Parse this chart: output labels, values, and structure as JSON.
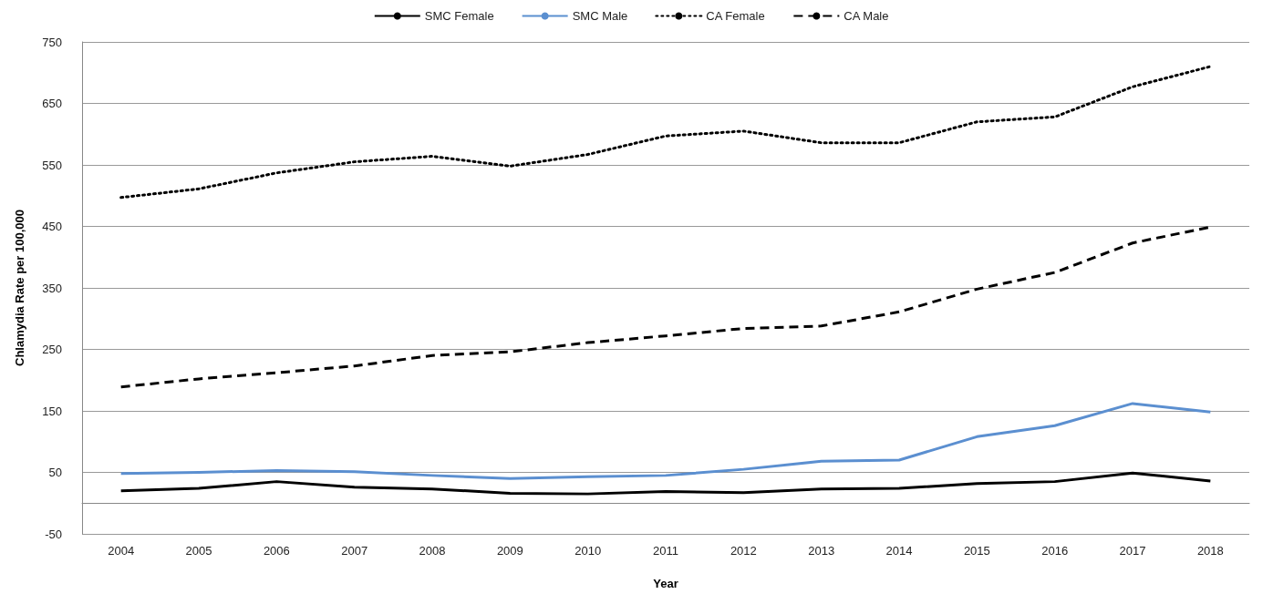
{
  "chart_data": {
    "type": "line",
    "xlabel": "Year",
    "ylabel": "Chlamydia Rate per 100,000",
    "categories": [
      "2004",
      "2005",
      "2006",
      "2007",
      "2008",
      "2009",
      "2010",
      "2011",
      "2012",
      "2013",
      "2014",
      "2015",
      "2016",
      "2017",
      "2018"
    ],
    "series": [
      {
        "name": "SMC Female",
        "color": "#000000",
        "line_style": "solid",
        "values": [
          20,
          24,
          35,
          26,
          23,
          16,
          15,
          19,
          17,
          23,
          24,
          32,
          35,
          49,
          36
        ]
      },
      {
        "name": "SMC Male",
        "color": "#5b8fd0",
        "line_style": "solid",
        "values": [
          48,
          50,
          53,
          51,
          45,
          40,
          43,
          45,
          55,
          68,
          70,
          108,
          126,
          162,
          148
        ]
      },
      {
        "name": "CA Female",
        "color": "#000000",
        "line_style": "dotted",
        "values": [
          497,
          511,
          537,
          555,
          564,
          548,
          567,
          597,
          605,
          586,
          586,
          620,
          628,
          677,
          710
        ]
      },
      {
        "name": "CA Male",
        "color": "#000000",
        "line_style": "dashed",
        "values": [
          189,
          202,
          212,
          223,
          240,
          246,
          261,
          272,
          284,
          288,
          311,
          348,
          375,
          423,
          449
        ]
      }
    ],
    "ylim": [
      -50,
      750
    ],
    "yticks": [
      -50,
      50,
      150,
      250,
      350,
      450,
      550,
      650,
      750
    ],
    "grid": "y",
    "legend": "top",
    "marker": "none"
  }
}
